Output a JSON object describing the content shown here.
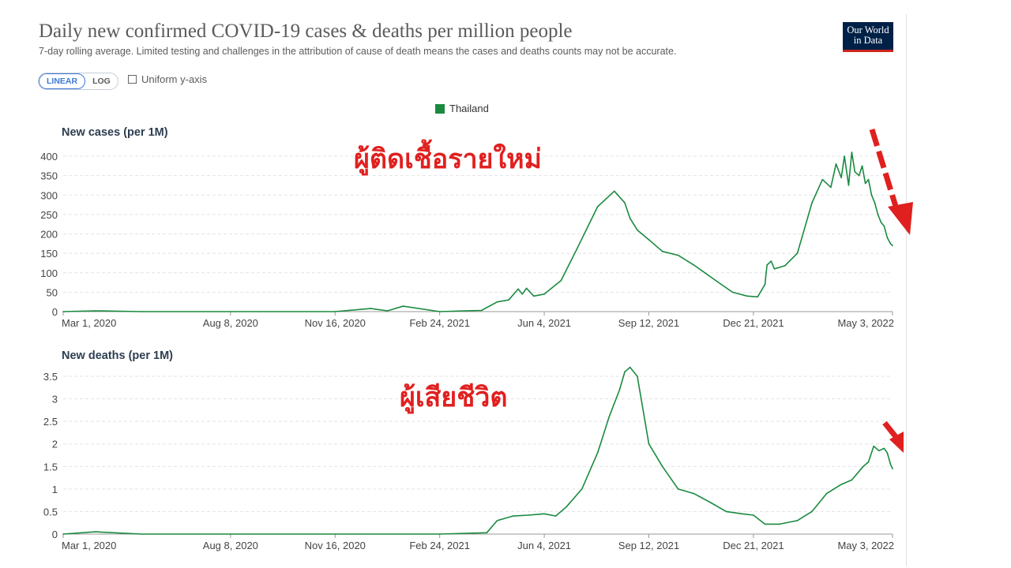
{
  "header": {
    "title": "Daily new confirmed COVID-19 cases & deaths per million people",
    "subtitle": "7-day rolling average. Limited testing and challenges in the attribution of cause of death means the cases and deaths counts may not be accurate.",
    "logo_line1": "Our World",
    "logo_line2": "in Data"
  },
  "controls": {
    "linear_label": "LINEAR",
    "log_label": "LOG",
    "uniform_label": "Uniform y-axis"
  },
  "legend": {
    "label": "Thailand",
    "color": "#1a8a3f"
  },
  "annotations": {
    "cases_thai": "ผู้ติดเชื้อรายใหม่",
    "deaths_thai": "ผู้เสียชีวิต",
    "color": "#e0201f"
  },
  "chart_data": [
    {
      "type": "line",
      "title": "New cases (per 1M)",
      "series": [
        {
          "name": "Thailand",
          "color": "#1a8a3f",
          "x": [
            "2020-03-01",
            "2020-04-01",
            "2020-05-15",
            "2020-08-08",
            "2020-11-16",
            "2020-12-20",
            "2021-01-05",
            "2021-01-20",
            "2021-02-24",
            "2021-03-20",
            "2021-04-05",
            "2021-04-20",
            "2021-05-01",
            "2021-05-10",
            "2021-05-14",
            "2021-05-18",
            "2021-05-25",
            "2021-06-04",
            "2021-06-20",
            "2021-07-05",
            "2021-07-25",
            "2021-08-10",
            "2021-08-20",
            "2021-08-25",
            "2021-09-01",
            "2021-09-12",
            "2021-09-25",
            "2021-10-10",
            "2021-10-25",
            "2021-11-15",
            "2021-12-01",
            "2021-12-15",
            "2021-12-25",
            "2022-01-01",
            "2022-01-03",
            "2022-01-07",
            "2022-01-10",
            "2022-01-20",
            "2022-02-01",
            "2022-02-15",
            "2022-02-25",
            "2022-03-05",
            "2022-03-10",
            "2022-03-15",
            "2022-03-18",
            "2022-03-22",
            "2022-03-25",
            "2022-03-28",
            "2022-04-01",
            "2022-04-04",
            "2022-04-07",
            "2022-04-10",
            "2022-04-13",
            "2022-04-16",
            "2022-04-19",
            "2022-04-22",
            "2022-04-25",
            "2022-04-28",
            "2022-05-01",
            "2022-05-03"
          ],
          "values": [
            0,
            2,
            0,
            0,
            0,
            8,
            2,
            14,
            0,
            2,
            3,
            25,
            30,
            58,
            45,
            60,
            40,
            45,
            80,
            160,
            270,
            310,
            280,
            240,
            210,
            185,
            155,
            145,
            120,
            80,
            50,
            40,
            38,
            70,
            120,
            130,
            110,
            118,
            150,
            280,
            340,
            320,
            380,
            345,
            400,
            325,
            410,
            360,
            350,
            375,
            330,
            340,
            300,
            280,
            250,
            230,
            220,
            190,
            175,
            170
          ]
        }
      ],
      "ylim": [
        0,
        400
      ],
      "y_ticks": [
        0,
        50,
        100,
        150,
        200,
        250,
        300,
        350,
        400
      ],
      "x_ticks": [
        "Mar 1, 2020",
        "Aug 8, 2020",
        "Nov 16, 2020",
        "Feb 24, 2021",
        "Jun 4, 2021",
        "Sep 12, 2021",
        "Dec 21, 2021",
        "May 3, 2022"
      ],
      "grid": true
    },
    {
      "type": "line",
      "title": "New deaths (per 1M)",
      "series": [
        {
          "name": "Thailand",
          "color": "#1a8a3f",
          "x": [
            "2020-03-01",
            "2020-04-01",
            "2020-05-15",
            "2020-08-08",
            "2020-11-16",
            "2021-02-24",
            "2021-04-10",
            "2021-04-20",
            "2021-05-05",
            "2021-05-20",
            "2021-06-04",
            "2021-06-15",
            "2021-06-25",
            "2021-07-10",
            "2021-07-25",
            "2021-08-05",
            "2021-08-15",
            "2021-08-20",
            "2021-08-25",
            "2021-09-01",
            "2021-09-12",
            "2021-09-25",
            "2021-10-10",
            "2021-10-25",
            "2021-11-10",
            "2021-11-25",
            "2021-12-10",
            "2021-12-21",
            "2022-01-01",
            "2022-01-15",
            "2022-02-01",
            "2022-02-15",
            "2022-03-01",
            "2022-03-15",
            "2022-03-25",
            "2022-04-05",
            "2022-04-10",
            "2022-04-15",
            "2022-04-20",
            "2022-04-25",
            "2022-04-28",
            "2022-05-01",
            "2022-05-03"
          ],
          "values": [
            0,
            0.05,
            0,
            0,
            0,
            0,
            0.03,
            0.3,
            0.4,
            0.42,
            0.45,
            0.4,
            0.6,
            1.0,
            1.8,
            2.6,
            3.2,
            3.6,
            3.7,
            3.5,
            2.0,
            1.5,
            1.0,
            0.9,
            0.7,
            0.5,
            0.45,
            0.42,
            0.22,
            0.22,
            0.3,
            0.5,
            0.9,
            1.1,
            1.2,
            1.5,
            1.6,
            1.95,
            1.85,
            1.9,
            1.8,
            1.55,
            1.45
          ]
        }
      ],
      "ylim": [
        0,
        3.7
      ],
      "y_ticks": [
        0,
        0.5,
        1,
        1.5,
        2,
        2.5,
        3,
        3.5
      ],
      "x_ticks": [
        "Mar 1, 2020",
        "Aug 8, 2020",
        "Nov 16, 2020",
        "Feb 24, 2021",
        "Jun 4, 2021",
        "Sep 12, 2021",
        "Dec 21, 2021",
        "May 3, 2022"
      ],
      "grid": true
    }
  ]
}
